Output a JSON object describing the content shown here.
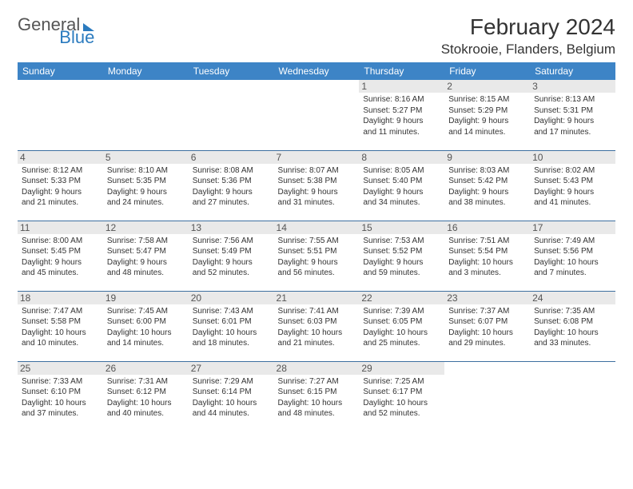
{
  "logo": {
    "text1": "General",
    "text2": "Blue"
  },
  "title": "February 2024",
  "location": "Stokrooie, Flanders, Belgium",
  "daysOfWeek": [
    "Sunday",
    "Monday",
    "Tuesday",
    "Wednesday",
    "Thursday",
    "Friday",
    "Saturday"
  ],
  "theme": {
    "headerBg": "#3d84c6",
    "headerText": "#ffffff",
    "rowBorder": "#3d6fa0",
    "dayNumBg": "#e9e9e9",
    "logoBlue": "#2b7bbf"
  },
  "cells": [
    [
      "",
      "",
      "",
      "",
      {
        "n": "1",
        "sunrise": "8:16 AM",
        "sunset": "5:27 PM",
        "dh": "9",
        "dm": "11"
      },
      {
        "n": "2",
        "sunrise": "8:15 AM",
        "sunset": "5:29 PM",
        "dh": "9",
        "dm": "14"
      },
      {
        "n": "3",
        "sunrise": "8:13 AM",
        "sunset": "5:31 PM",
        "dh": "9",
        "dm": "17"
      }
    ],
    [
      {
        "n": "4",
        "sunrise": "8:12 AM",
        "sunset": "5:33 PM",
        "dh": "9",
        "dm": "21"
      },
      {
        "n": "5",
        "sunrise": "8:10 AM",
        "sunset": "5:35 PM",
        "dh": "9",
        "dm": "24"
      },
      {
        "n": "6",
        "sunrise": "8:08 AM",
        "sunset": "5:36 PM",
        "dh": "9",
        "dm": "27"
      },
      {
        "n": "7",
        "sunrise": "8:07 AM",
        "sunset": "5:38 PM",
        "dh": "9",
        "dm": "31"
      },
      {
        "n": "8",
        "sunrise": "8:05 AM",
        "sunset": "5:40 PM",
        "dh": "9",
        "dm": "34"
      },
      {
        "n": "9",
        "sunrise": "8:03 AM",
        "sunset": "5:42 PM",
        "dh": "9",
        "dm": "38"
      },
      {
        "n": "10",
        "sunrise": "8:02 AM",
        "sunset": "5:43 PM",
        "dh": "9",
        "dm": "41"
      }
    ],
    [
      {
        "n": "11",
        "sunrise": "8:00 AM",
        "sunset": "5:45 PM",
        "dh": "9",
        "dm": "45"
      },
      {
        "n": "12",
        "sunrise": "7:58 AM",
        "sunset": "5:47 PM",
        "dh": "9",
        "dm": "48"
      },
      {
        "n": "13",
        "sunrise": "7:56 AM",
        "sunset": "5:49 PM",
        "dh": "9",
        "dm": "52"
      },
      {
        "n": "14",
        "sunrise": "7:55 AM",
        "sunset": "5:51 PM",
        "dh": "9",
        "dm": "56"
      },
      {
        "n": "15",
        "sunrise": "7:53 AM",
        "sunset": "5:52 PM",
        "dh": "9",
        "dm": "59"
      },
      {
        "n": "16",
        "sunrise": "7:51 AM",
        "sunset": "5:54 PM",
        "dh": "10",
        "dm": "3"
      },
      {
        "n": "17",
        "sunrise": "7:49 AM",
        "sunset": "5:56 PM",
        "dh": "10",
        "dm": "7"
      }
    ],
    [
      {
        "n": "18",
        "sunrise": "7:47 AM",
        "sunset": "5:58 PM",
        "dh": "10",
        "dm": "10"
      },
      {
        "n": "19",
        "sunrise": "7:45 AM",
        "sunset": "6:00 PM",
        "dh": "10",
        "dm": "14"
      },
      {
        "n": "20",
        "sunrise": "7:43 AM",
        "sunset": "6:01 PM",
        "dh": "10",
        "dm": "18"
      },
      {
        "n": "21",
        "sunrise": "7:41 AM",
        "sunset": "6:03 PM",
        "dh": "10",
        "dm": "21"
      },
      {
        "n": "22",
        "sunrise": "7:39 AM",
        "sunset": "6:05 PM",
        "dh": "10",
        "dm": "25"
      },
      {
        "n": "23",
        "sunrise": "7:37 AM",
        "sunset": "6:07 PM",
        "dh": "10",
        "dm": "29"
      },
      {
        "n": "24",
        "sunrise": "7:35 AM",
        "sunset": "6:08 PM",
        "dh": "10",
        "dm": "33"
      }
    ],
    [
      {
        "n": "25",
        "sunrise": "7:33 AM",
        "sunset": "6:10 PM",
        "dh": "10",
        "dm": "37"
      },
      {
        "n": "26",
        "sunrise": "7:31 AM",
        "sunset": "6:12 PM",
        "dh": "10",
        "dm": "40"
      },
      {
        "n": "27",
        "sunrise": "7:29 AM",
        "sunset": "6:14 PM",
        "dh": "10",
        "dm": "44"
      },
      {
        "n": "28",
        "sunrise": "7:27 AM",
        "sunset": "6:15 PM",
        "dh": "10",
        "dm": "48"
      },
      {
        "n": "29",
        "sunrise": "7:25 AM",
        "sunset": "6:17 PM",
        "dh": "10",
        "dm": "52"
      },
      "",
      ""
    ]
  ]
}
